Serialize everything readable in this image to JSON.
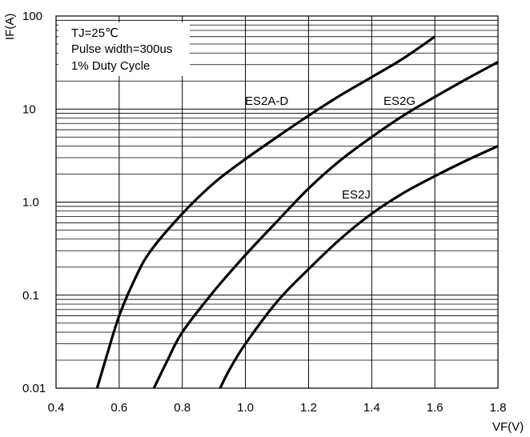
{
  "chart_data": {
    "type": "line",
    "xlabel": "VF(V)",
    "ylabel": "IF(A)",
    "x_scale": "linear",
    "y_scale": "log",
    "xlim": [
      0.4,
      1.8
    ],
    "ylim": [
      0.01,
      100
    ],
    "x_ticks": [
      "0.4",
      "0.6",
      "0.8",
      "1.0",
      "1.2",
      "1.4",
      "1.6",
      "1.8"
    ],
    "y_ticks": [
      "0.01",
      "0.1",
      "1.0",
      "10",
      "100"
    ],
    "grid": true,
    "notes": [
      "TJ=25℃",
      "Pulse width=300us",
      "1% Duty Cycle"
    ],
    "series": [
      {
        "name": "ES2A-D",
        "x": [
          0.53,
          0.56,
          0.6,
          0.65,
          0.7,
          0.8,
          0.9,
          1.0,
          1.1,
          1.2,
          1.3,
          1.4,
          1.5,
          1.6
        ],
        "y": [
          0.01,
          0.022,
          0.06,
          0.15,
          0.3,
          0.75,
          1.6,
          2.9,
          5.0,
          8.5,
          14,
          22,
          35,
          60
        ]
      },
      {
        "name": "ES2G",
        "x": [
          0.71,
          0.75,
          0.8,
          0.9,
          1.0,
          1.1,
          1.2,
          1.3,
          1.4,
          1.5,
          1.6,
          1.7,
          1.8
        ],
        "y": [
          0.01,
          0.019,
          0.04,
          0.11,
          0.27,
          0.62,
          1.4,
          2.8,
          5.0,
          8.5,
          13.5,
          21,
          32
        ]
      },
      {
        "name": "ES2J",
        "x": [
          0.92,
          0.95,
          1.0,
          1.1,
          1.2,
          1.3,
          1.4,
          1.5,
          1.6,
          1.7,
          1.8
        ],
        "y": [
          0.01,
          0.016,
          0.03,
          0.085,
          0.19,
          0.4,
          0.75,
          1.25,
          1.9,
          2.8,
          4.0
        ]
      }
    ]
  }
}
